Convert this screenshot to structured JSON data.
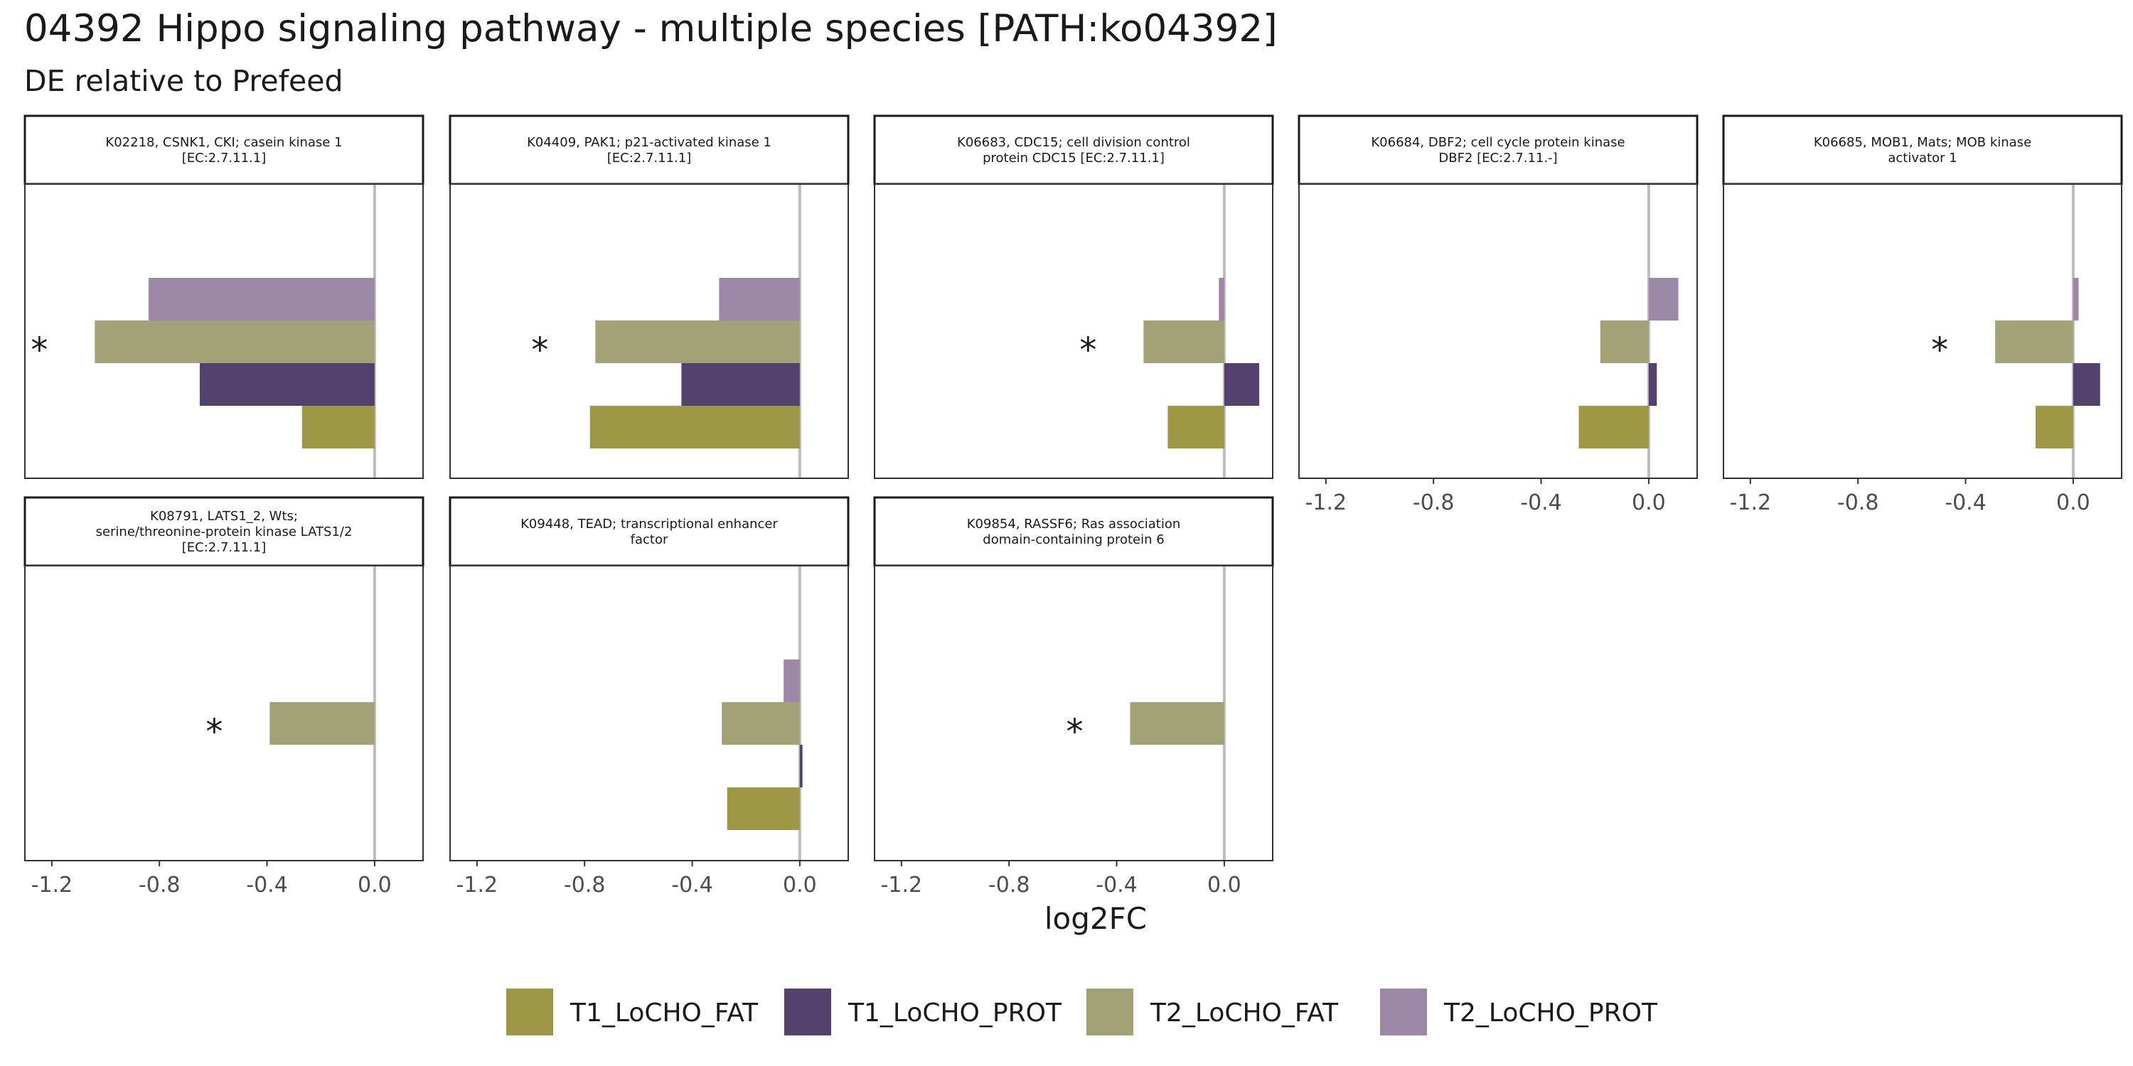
{
  "title": "04392 Hippo signaling pathway - multiple species [PATH:ko04392]",
  "subtitle": "DE relative to Prefeed",
  "chart_data": {
    "type": "bar",
    "orientation": "horizontal",
    "facet_layout": "5 columns, 2 rows, fixed x axis",
    "xlabel": "log2FC",
    "xlim": [
      -1.3,
      0.18
    ],
    "x_ticks": [
      -1.2,
      -0.8,
      -0.4,
      0.0
    ],
    "x_tick_labels": [
      "-1.2",
      "-0.8",
      "-0.4",
      "0.0"
    ],
    "reference_line": 0.0,
    "grid": false,
    "legend_position": "bottom",
    "series": [
      {
        "name": "T1_LoCHO_FAT",
        "color": "#9E9746"
      },
      {
        "name": "T1_LoCHO_PROT",
        "color": "#51416C"
      },
      {
        "name": "T2_LoCHO_FAT",
        "color": "#A2A276"
      },
      {
        "name": "T2_LoCHO_PROT",
        "color": "#9B87A6"
      }
    ],
    "panels": [
      {
        "label": "K02218, CSNK1, CKI; casein kinase 1\n[EC:2.7.11.1]",
        "values": {
          "T1_LoCHO_FAT": -0.27,
          "T1_LoCHO_PROT": -0.65,
          "T2_LoCHO_FAT": -1.04,
          "T2_LoCHO_PROT": -0.84
        },
        "significance": "*",
        "significance_series": "T2_LoCHO_FAT"
      },
      {
        "label": "K04409, PAK1; p21-activated kinase 1\n[EC:2.7.11.1]",
        "values": {
          "T1_LoCHO_FAT": -0.78,
          "T1_LoCHO_PROT": -0.44,
          "T2_LoCHO_FAT": -0.76,
          "T2_LoCHO_PROT": -0.3
        },
        "significance": "*",
        "significance_series": "T2_LoCHO_FAT"
      },
      {
        "label": "K06683, CDC15; cell division control\nprotein CDC15 [EC:2.7.11.1]",
        "values": {
          "T1_LoCHO_FAT": -0.21,
          "T1_LoCHO_PROT": 0.13,
          "T2_LoCHO_FAT": -0.3,
          "T2_LoCHO_PROT": -0.02
        },
        "significance": "*",
        "significance_series": "T2_LoCHO_FAT"
      },
      {
        "label": "K06684, DBF2; cell cycle protein kinase\nDBF2 [EC:2.7.11.-]",
        "values": {
          "T1_LoCHO_FAT": -0.26,
          "T1_LoCHO_PROT": 0.03,
          "T2_LoCHO_FAT": -0.18,
          "T2_LoCHO_PROT": 0.11
        },
        "significance": "",
        "significance_series": ""
      },
      {
        "label": "K06685, MOB1, Mats; MOB kinase\nactivator 1",
        "values": {
          "T1_LoCHO_FAT": -0.14,
          "T1_LoCHO_PROT": 0.1,
          "T2_LoCHO_FAT": -0.29,
          "T2_LoCHO_PROT": 0.02
        },
        "significance": "*",
        "significance_series": "T2_LoCHO_FAT"
      },
      {
        "label": "K08791, LATS1_2, Wts;\nserine/threonine-protein kinase LATS1/2\n[EC:2.7.11.1]",
        "values": {
          "T1_LoCHO_FAT": null,
          "T1_LoCHO_PROT": null,
          "T2_LoCHO_FAT": -0.39,
          "T2_LoCHO_PROT": null
        },
        "significance": "*",
        "significance_series": "T2_LoCHO_FAT"
      },
      {
        "label": "K09448, TEAD; transcriptional enhancer\nfactor",
        "values": {
          "T1_LoCHO_FAT": -0.27,
          "T1_LoCHO_PROT": 0.01,
          "T2_LoCHO_FAT": -0.29,
          "T2_LoCHO_PROT": -0.06
        },
        "significance": "",
        "significance_series": ""
      },
      {
        "label": "K09854, RASSF6; Ras association\ndomain-containing protein 6",
        "values": {
          "T1_LoCHO_FAT": null,
          "T1_LoCHO_PROT": null,
          "T2_LoCHO_FAT": -0.35,
          "T2_LoCHO_PROT": null
        },
        "significance": "*",
        "significance_series": "T2_LoCHO_FAT"
      }
    ]
  }
}
